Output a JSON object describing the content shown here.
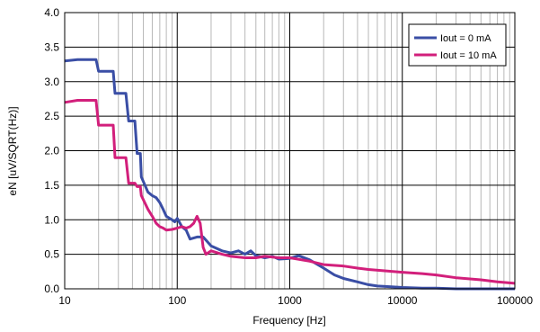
{
  "chart_data": {
    "type": "line",
    "title": "",
    "xlabel": "Frequency [Hz]",
    "ylabel": "eN  [uV/SQRT(Hz)]",
    "x_scale": "log",
    "xlim": [
      10,
      100000
    ],
    "ylim": [
      0,
      4.0
    ],
    "x_tick_labels": [
      "10",
      "100",
      "1000",
      "10000",
      "100000"
    ],
    "y_tick_labels": [
      "0.0",
      "0.5",
      "1.0",
      "1.5",
      "2.0",
      "2.5",
      "3.0",
      "3.5",
      "4.0"
    ],
    "grid": true,
    "legend_position": "top-right",
    "series": [
      {
        "name": "Iout = 0 mA",
        "color": "#3a4ea5",
        "x": [
          10,
          13,
          19,
          20,
          27,
          28,
          35,
          37,
          42,
          44,
          47,
          48,
          55,
          60,
          65,
          70,
          75,
          80,
          90,
          95,
          100,
          110,
          120,
          130,
          150,
          170,
          200,
          250,
          300,
          350,
          400,
          450,
          500,
          600,
          700,
          800,
          1000,
          1200,
          1500,
          2000,
          2500,
          3000,
          4000,
          5000,
          6000,
          8000,
          10000,
          15000,
          20000,
          30000,
          50000,
          100000
        ],
        "y": [
          3.3,
          3.32,
          3.32,
          3.15,
          3.15,
          2.83,
          2.83,
          2.43,
          2.43,
          1.96,
          1.96,
          1.62,
          1.4,
          1.35,
          1.32,
          1.25,
          1.15,
          1.05,
          1.0,
          0.97,
          1.02,
          0.9,
          0.85,
          0.72,
          0.75,
          0.75,
          0.62,
          0.55,
          0.52,
          0.55,
          0.5,
          0.55,
          0.48,
          0.45,
          0.47,
          0.43,
          0.44,
          0.48,
          0.42,
          0.3,
          0.2,
          0.15,
          0.1,
          0.06,
          0.04,
          0.03,
          0.02,
          0.01,
          0.01,
          0.0,
          0.0,
          0.0
        ]
      },
      {
        "name": "Iout = 10 mA",
        "color": "#d21f7b",
        "x": [
          10,
          13,
          19,
          20,
          27,
          28,
          35,
          37,
          42,
          44,
          47,
          48,
          55,
          60,
          65,
          70,
          75,
          80,
          90,
          100,
          110,
          120,
          130,
          140,
          150,
          160,
          170,
          180,
          200,
          250,
          300,
          400,
          500,
          600,
          800,
          1000,
          1500,
          2000,
          3000,
          4000,
          5000,
          7000,
          10000,
          15000,
          20000,
          30000,
          50000,
          70000,
          100000
        ],
        "y": [
          2.7,
          2.73,
          2.73,
          2.37,
          2.37,
          1.9,
          1.9,
          1.53,
          1.53,
          1.48,
          1.48,
          1.35,
          1.15,
          1.05,
          0.95,
          0.9,
          0.88,
          0.85,
          0.86,
          0.88,
          0.9,
          0.88,
          0.9,
          0.95,
          1.05,
          0.95,
          0.6,
          0.5,
          0.55,
          0.5,
          0.47,
          0.45,
          0.45,
          0.47,
          0.45,
          0.45,
          0.4,
          0.35,
          0.33,
          0.3,
          0.28,
          0.26,
          0.24,
          0.22,
          0.2,
          0.16,
          0.13,
          0.1,
          0.08
        ]
      }
    ]
  }
}
